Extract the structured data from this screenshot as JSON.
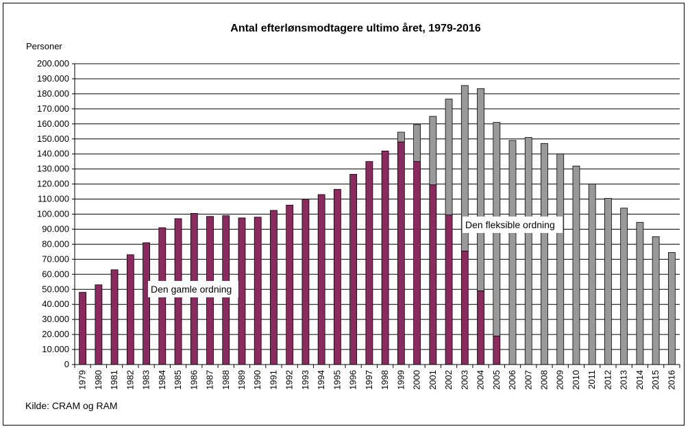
{
  "chart_data": {
    "type": "bar",
    "stacked": true,
    "title": "Antal efterlønsmodtagere ultimo året, 1979-2016",
    "ylabel": "Personer",
    "ylim": [
      0,
      200000
    ],
    "ytick_step": 10000,
    "ytick_labels": [
      "0",
      "10.000",
      "20.000",
      "30.000",
      "40.000",
      "50.000",
      "60.000",
      "70.000",
      "80.000",
      "90.000",
      "100.000",
      "110.000",
      "120.000",
      "130.000",
      "140.000",
      "150.000",
      "160.000",
      "170.000",
      "180.000",
      "190.000",
      "200.000"
    ],
    "grid": true,
    "categories": [
      "1979",
      "1980",
      "1981",
      "1982",
      "1983",
      "1984",
      "1985",
      "1986",
      "1987",
      "1988",
      "1989",
      "1990",
      "1991",
      "1992",
      "1993",
      "1994",
      "1995",
      "1996",
      "1997",
      "1998",
      "1999",
      "2000",
      "2001",
      "2002",
      "2003",
      "2004",
      "2005",
      "2006",
      "2007",
      "2008",
      "2009",
      "2010",
      "2011",
      "2012",
      "2013",
      "2014",
      "2015",
      "2016"
    ],
    "series": [
      {
        "name": "Den gamle ordning",
        "color": "#8B2A5E",
        "values": [
          48000,
          53000,
          63000,
          73000,
          81000,
          91000,
          97000,
          100500,
          98500,
          99000,
          97500,
          98000,
          102500,
          106000,
          110000,
          113000,
          116500,
          126500,
          135000,
          142000,
          148000,
          135000,
          119500,
          99500,
          75500,
          49000,
          19000,
          0,
          0,
          0,
          0,
          0,
          0,
          0,
          0,
          0,
          0,
          0
        ]
      },
      {
        "name": "Den fleksible ordning",
        "color": "#999999",
        "values": [
          0,
          0,
          0,
          0,
          0,
          0,
          0,
          0,
          0,
          0,
          0,
          0,
          0,
          0,
          0,
          0,
          0,
          0,
          0,
          0,
          6500,
          24500,
          45500,
          77000,
          110000,
          134500,
          142000,
          149000,
          151000,
          147000,
          140000,
          132000,
          120000,
          110500,
          104000,
          94500,
          85000,
          74500
        ]
      }
    ],
    "annotations": [
      {
        "series": 0,
        "text": "Den gamle ordning"
      },
      {
        "series": 1,
        "text": "Den fleksible ordning"
      }
    ],
    "source": "Kilde: CRAM og RAM"
  }
}
